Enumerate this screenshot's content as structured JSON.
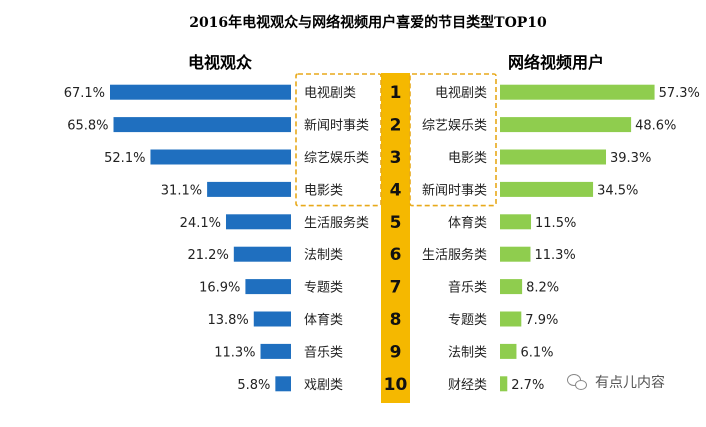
{
  "chart_data": {
    "type": "bar",
    "title": "2016年电视观众与网络视频用户喜爱的节目类型TOP10",
    "ranks": [
      "1",
      "2",
      "3",
      "4",
      "5",
      "6",
      "7",
      "8",
      "9",
      "10"
    ],
    "left": {
      "name": "电视观众",
      "categories": [
        "电视剧类",
        "新闻时事类",
        "综艺娱乐类",
        "电影类",
        "生活服务类",
        "法制类",
        "专题类",
        "体育类",
        "音乐类",
        "戏剧类"
      ],
      "values": [
        67.1,
        65.8,
        52.1,
        31.1,
        24.1,
        21.2,
        16.9,
        13.8,
        11.3,
        5.8
      ],
      "labels": [
        "67.1%",
        "65.8%",
        "52.1%",
        "31.1%",
        "24.1%",
        "21.2%",
        "16.9%",
        "13.8%",
        "11.3%",
        "5.8%"
      ],
      "color": "#1f6fbf"
    },
    "right": {
      "name": "网络视频用户",
      "categories": [
        "电视剧类",
        "综艺娱乐类",
        "电影类",
        "新闻时事类",
        "体育类",
        "生活服务类",
        "音乐类",
        "专题类",
        "法制类",
        "财经类"
      ],
      "values": [
        57.3,
        48.6,
        39.3,
        34.5,
        11.5,
        11.3,
        8.2,
        7.9,
        6.1,
        2.7
      ],
      "labels": [
        "57.3%",
        "48.6%",
        "39.3%",
        "34.5%",
        "11.5%",
        "11.3%",
        "8.2%",
        "7.9%",
        "6.1%",
        "2.7%"
      ],
      "color": "#8fcd4e"
    },
    "rank_color": "#f5b800",
    "top_box_color": "#e8a91a",
    "xlim": [
      0,
      70
    ]
  },
  "watermark": "有点儿内容"
}
